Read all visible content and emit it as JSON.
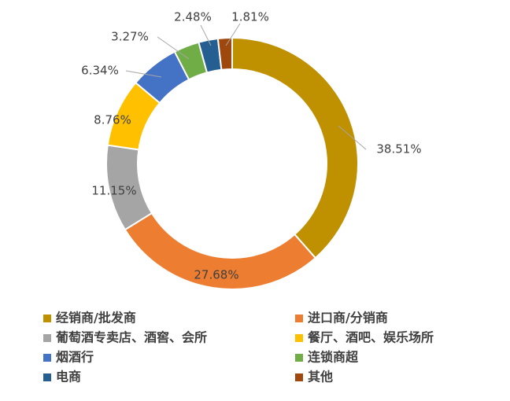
{
  "chart_data": {
    "type": "donut",
    "categories": [
      "经销商/批发商",
      "进口商/分销商",
      "葡萄酒专卖店、酒窖、会所",
      "餐厅、酒吧、娱乐场所",
      "烟酒行",
      "连锁商超",
      "电商",
      "其他"
    ],
    "values": [
      38.51,
      27.68,
      11.15,
      8.76,
      6.34,
      3.27,
      2.48,
      1.81
    ],
    "value_labels": [
      "38.51%",
      "27.68%",
      "11.15%",
      "8.76%",
      "6.34%",
      "3.27%",
      "2.48%",
      "1.81%"
    ],
    "colors": [
      "#BF9000",
      "#ED7D31",
      "#A5A5A5",
      "#FFC000",
      "#4472C4",
      "#70AD47",
      "#255E91",
      "#9E480E"
    ],
    "legend": "bottom"
  }
}
